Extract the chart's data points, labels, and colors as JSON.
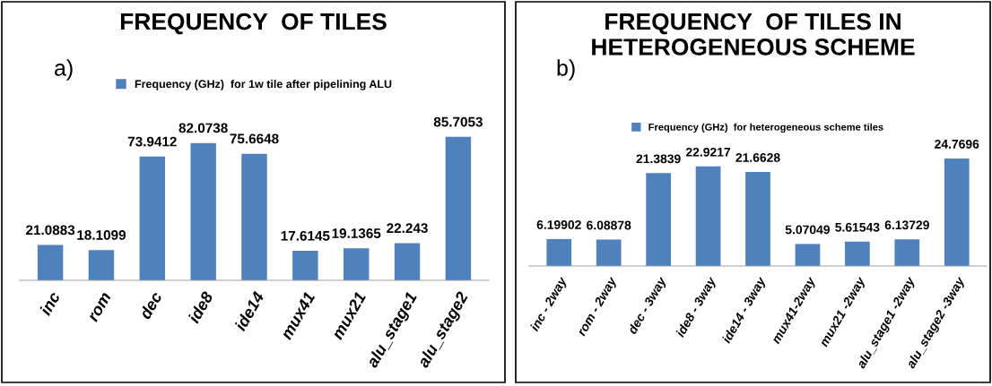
{
  "chart_data": [
    {
      "type": "bar",
      "title": "FREQUENCY  OF TILES",
      "categories": [
        "inc",
        "rom",
        "dec",
        "ide8",
        "ide14",
        "mux41",
        "mux21",
        "alu_stage1",
        "alu_stage2"
      ],
      "series": [
        {
          "name": "Frequency (GHz)  for 1w tile after pipelining ALU",
          "color": "#4f81bd",
          "values": [
            21.0883,
            18.1099,
            73.9412,
            82.0738,
            75.6648,
            17.6145,
            19.1365,
            22.243,
            85.7053
          ]
        }
      ],
      "data_labels": true,
      "legend": "top",
      "grid": false,
      "annotations": [
        "a)"
      ]
    },
    {
      "type": "bar",
      "title": "FREQUENCY  OF TILES IN HETEROGENEOUS SCHEME",
      "categories": [
        "inc - 2way",
        "rom - 2way",
        "dec - 3way",
        "ide8 - 3way",
        "ide14 - 3way",
        "mux41-2way",
        "mux21 -2way",
        "alu_stage1 -2way",
        "alu_stage2 -3way"
      ],
      "series": [
        {
          "name": "Frequency (GHz)  for heterogeneous scheme tiles",
          "color": "#4f81bd",
          "values": [
            6.19902,
            6.08878,
            21.3839,
            22.9217,
            21.6628,
            5.07049,
            5.61543,
            6.13729,
            24.7696
          ]
        }
      ],
      "data_labels": true,
      "legend": "top",
      "grid": false,
      "annotations": [
        "b)"
      ]
    }
  ]
}
